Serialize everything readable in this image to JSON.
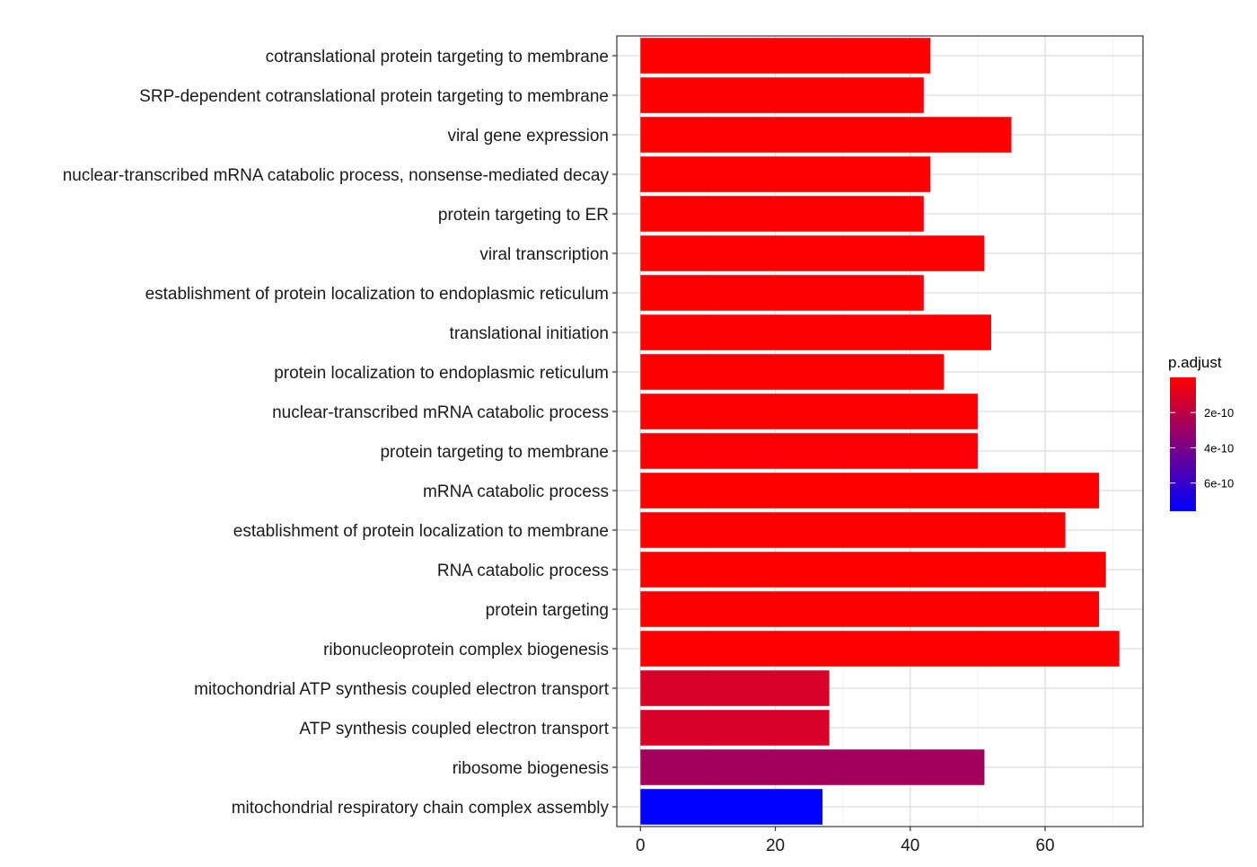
{
  "chart_data": {
    "type": "bar",
    "orientation": "horizontal",
    "categories": [
      "cotranslational protein targeting to membrane",
      "SRP-dependent cotranslational protein targeting to membrane",
      "viral gene expression",
      "nuclear-transcribed mRNA catabolic process, nonsense-mediated decay",
      "protein targeting to ER",
      "viral transcription",
      "establishment of protein localization to endoplasmic reticulum",
      "translational initiation",
      "protein localization to endoplasmic reticulum",
      "nuclear-transcribed mRNA catabolic process",
      "protein targeting to membrane",
      "mRNA catabolic process",
      "establishment of protein localization to membrane",
      "RNA catabolic process",
      "protein targeting",
      "ribonucleoprotein complex biogenesis",
      "mitochondrial ATP synthesis coupled electron transport",
      "ATP synthesis coupled electron transport",
      "ribosome biogenesis",
      "mitochondrial respiratory chain complex assembly"
    ],
    "values": [
      43,
      42,
      55,
      43,
      42,
      51,
      42,
      52,
      45,
      50,
      50,
      68,
      63,
      69,
      68,
      71,
      28,
      28,
      51,
      27
    ],
    "color_values": [
      3e-12,
      5e-12,
      3e-12,
      4e-12,
      5e-12,
      4e-12,
      6e-12,
      6e-12,
      8e-12,
      1e-11,
      1.5e-11,
      1e-12,
      1e-11,
      1e-12,
      8e-12,
      3e-12,
      1.2e-10,
      1.2e-10,
      2.8e-10,
      7.6e-10
    ],
    "title": "",
    "xlabel": "",
    "ylabel": "",
    "xlim": [
      -3.5,
      74.5
    ],
    "xticks": [
      0,
      20,
      40,
      60
    ],
    "grid": true,
    "legend": {
      "title": "p.adjust",
      "position": "right",
      "color_low": "#ff0000",
      "color_high": "#0000ff",
      "range": [
        0,
        7.6e-10
      ],
      "ticks": [
        {
          "value": 2e-10,
          "label": "2e-10"
        },
        {
          "value": 4e-10,
          "label": "4e-10"
        },
        {
          "value": 6e-10,
          "label": "6e-10"
        }
      ]
    }
  }
}
